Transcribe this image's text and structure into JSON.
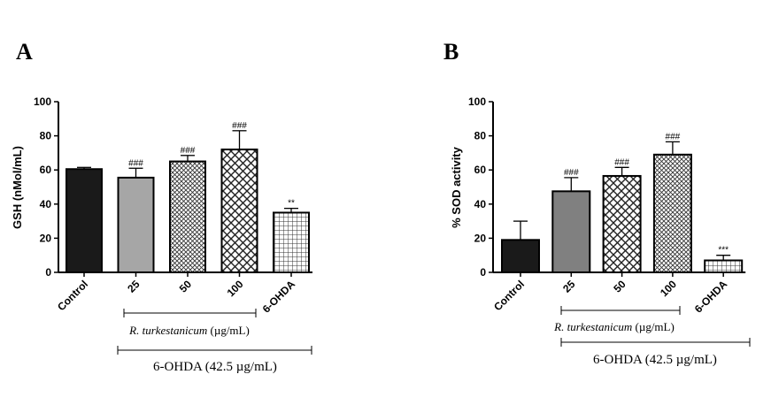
{
  "chart_data": [
    {
      "type": "bar",
      "panel": "A",
      "categories": [
        "Control",
        "25",
        "50",
        "100",
        "6-OHDA"
      ],
      "values": [
        60.5,
        55.5,
        65,
        72,
        35
      ],
      "errors": [
        1,
        5.5,
        3.5,
        11,
        2.5
      ],
      "significance": [
        "",
        "###",
        "###",
        "###",
        "**"
      ],
      "fills": [
        "solid-black",
        "solid-gray",
        "crosshatch-fine",
        "crosshatch-large",
        "grid"
      ],
      "ylabel": "GSH (nMol/mL)",
      "ylim": [
        0,
        100
      ],
      "yticks": [
        0,
        20,
        40,
        60,
        80,
        100
      ],
      "grid": false,
      "bracket_inner": {
        "italic": "R. turkestanicum",
        "rest": " (µg/mL)"
      },
      "bracket_outer": "6-OHDA (42.5 µg/mL)"
    },
    {
      "type": "bar",
      "panel": "B",
      "categories": [
        "Control",
        "25",
        "50",
        "100",
        "6-OHDA"
      ],
      "values": [
        19,
        47.5,
        56.5,
        69,
        7
      ],
      "errors": [
        11,
        8,
        5,
        7.5,
        3
      ],
      "significance": [
        "",
        "###",
        "###",
        "###",
        "***"
      ],
      "fills": [
        "solid-black",
        "solid-darkgray",
        "crosshatch-large",
        "crosshatch-fine",
        "grid"
      ],
      "ylabel": "% SOD activity",
      "ylim": [
        0,
        100
      ],
      "yticks": [
        0,
        20,
        40,
        60,
        80,
        100
      ],
      "grid": false,
      "bracket_inner": {
        "italic": "R. turkestanicum",
        "rest": " (µg/mL)"
      },
      "bracket_outer": "6-OHDA (42.5 µg/mL)"
    }
  ]
}
